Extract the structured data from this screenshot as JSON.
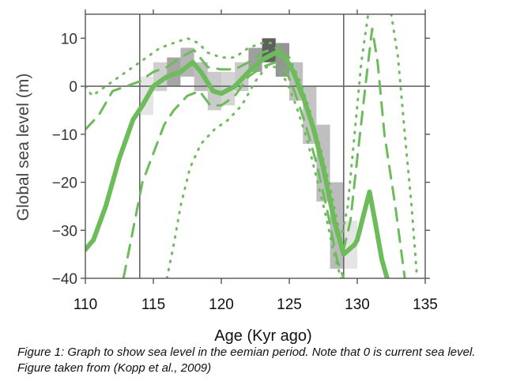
{
  "chart_data": {
    "type": "line",
    "xlabel": "Age (Kyr ago)",
    "ylabel": "Global sea level (m)",
    "xlim": [
      110,
      135
    ],
    "ylim": [
      -40,
      15
    ],
    "x_ticks": [
      110,
      115,
      120,
      125,
      130,
      135
    ],
    "x_tick_labels": [
      "110",
      "115",
      "120",
      "125",
      "130",
      "135"
    ],
    "y_ticks": [
      10,
      0,
      -10,
      -20,
      -30,
      -40
    ],
    "y_tick_labels": [
      "10",
      "0",
      "−10",
      "−20",
      "−30",
      "−40"
    ],
    "reference_lines": {
      "horizontal_y": 0,
      "vertical_x": [
        114,
        129
      ]
    },
    "colors": {
      "series": "#6cbd5a",
      "axes": "#555555",
      "shading": "#2b2b2b"
    },
    "series": [
      {
        "style": "solid",
        "points": [
          [
            110,
            -34
          ],
          [
            110.6,
            -32
          ],
          [
            111.5,
            -25
          ],
          [
            112.5,
            -15
          ],
          [
            113.5,
            -7
          ],
          [
            114.2,
            -4
          ],
          [
            115,
            0
          ],
          [
            116,
            2
          ],
          [
            117,
            3
          ],
          [
            117.9,
            5
          ],
          [
            118.5,
            3
          ],
          [
            119.4,
            -1
          ],
          [
            120,
            -1.5
          ],
          [
            121,
            0
          ],
          [
            122,
            3
          ],
          [
            123,
            5.5
          ],
          [
            124,
            7
          ],
          [
            124.7,
            6
          ],
          [
            125.3,
            3
          ],
          [
            126,
            -2
          ],
          [
            126.8,
            -9
          ],
          [
            127.5,
            -17
          ],
          [
            128.3,
            -28
          ],
          [
            129,
            -35
          ],
          [
            129.8,
            -33
          ],
          [
            130,
            -32
          ],
          [
            130.9,
            -22
          ],
          [
            131.3,
            -28
          ],
          [
            131.8,
            -36
          ],
          [
            132.2,
            -40
          ]
        ]
      },
      {
        "style": "dashed",
        "points": [
          [
            110,
            -9
          ],
          [
            111,
            -6
          ],
          [
            112,
            -1
          ],
          [
            113,
            0
          ],
          [
            114,
            1
          ],
          [
            115,
            3
          ],
          [
            116,
            4
          ],
          [
            117,
            6
          ],
          [
            118,
            7.5
          ],
          [
            119,
            4
          ],
          [
            120,
            3.5
          ],
          [
            121,
            3.5
          ],
          [
            122,
            5
          ],
          [
            123,
            7
          ],
          [
            124,
            8
          ],
          [
            125,
            5
          ],
          [
            125.6,
            0
          ],
          [
            126.3,
            -5
          ],
          [
            127,
            -12
          ],
          [
            127.6,
            -19
          ],
          [
            128.2,
            -26
          ],
          [
            129,
            -34
          ],
          [
            129.5,
            -28
          ],
          [
            130,
            -15
          ],
          [
            130.6,
            0
          ],
          [
            131.1,
            12
          ],
          [
            131.5,
            5
          ],
          [
            132,
            -10
          ],
          [
            132.8,
            -25
          ],
          [
            133.5,
            -40
          ]
        ]
      },
      {
        "style": "dashed",
        "points": [
          [
            112.8,
            -40
          ],
          [
            113.5,
            -30
          ],
          [
            114.2,
            -20
          ],
          [
            115,
            -14
          ],
          [
            115.8,
            -8
          ],
          [
            116.5,
            -5
          ],
          [
            117.5,
            -2
          ],
          [
            118.4,
            -1
          ],
          [
            119.2,
            -4
          ],
          [
            120,
            -4
          ],
          [
            121,
            -2
          ],
          [
            122,
            2
          ],
          [
            123,
            4
          ],
          [
            124,
            5
          ],
          [
            124.8,
            3
          ],
          [
            125.5,
            -2
          ],
          [
            126.2,
            -8
          ],
          [
            127,
            -16
          ],
          [
            127.8,
            -26
          ],
          [
            128.5,
            -36
          ],
          [
            129,
            -40
          ]
        ]
      },
      {
        "style": "dotted",
        "points": [
          [
            110,
            0
          ],
          [
            110.5,
            -2
          ],
          [
            111.5,
            0
          ],
          [
            112.5,
            2
          ],
          [
            113.5,
            4
          ],
          [
            114.5,
            6
          ],
          [
            115.5,
            8
          ],
          [
            116.5,
            9
          ],
          [
            117.5,
            10
          ],
          [
            118.3,
            9
          ],
          [
            119,
            7
          ],
          [
            120,
            6
          ],
          [
            121,
            6
          ],
          [
            122,
            8
          ],
          [
            123,
            9
          ],
          [
            124,
            9
          ],
          [
            125,
            6
          ],
          [
            125.8,
            1
          ],
          [
            126.5,
            -5
          ],
          [
            127.3,
            -13
          ],
          [
            128,
            -21
          ],
          [
            128.8,
            -32
          ],
          [
            129.3,
            -25
          ],
          [
            129.8,
            -10
          ],
          [
            130.3,
            5
          ],
          [
            130.8,
            15
          ]
        ]
      },
      {
        "style": "dotted",
        "points": [
          [
            116,
            -40
          ],
          [
            116.5,
            -33
          ],
          [
            117,
            -25
          ],
          [
            117.7,
            -17
          ],
          [
            118.5,
            -12
          ],
          [
            119.5,
            -9
          ],
          [
            120.5,
            -7
          ],
          [
            121.5,
            -4
          ],
          [
            122.5,
            1
          ],
          [
            123.3,
            4
          ],
          [
            124,
            4
          ],
          [
            124.8,
            1
          ],
          [
            125.5,
            -4
          ],
          [
            126.3,
            -11
          ],
          [
            127,
            -19
          ],
          [
            127.7,
            -27
          ],
          [
            128.3,
            -35
          ],
          [
            128.8,
            -40
          ]
        ]
      },
      {
        "style": "dotted",
        "points": [
          [
            132.5,
            15
          ],
          [
            133,
            6
          ],
          [
            133.5,
            -10
          ],
          [
            134,
            -25
          ],
          [
            134.4,
            -40
          ]
        ]
      }
    ],
    "density_shading": [
      {
        "x": [
          114,
          115
        ],
        "y": [
          -6,
          2
        ],
        "o": 0.12
      },
      {
        "x": [
          115,
          116
        ],
        "y": [
          -1,
          5
        ],
        "o": 0.22
      },
      {
        "x": [
          116,
          117
        ],
        "y": [
          0,
          6
        ],
        "o": 0.42
      },
      {
        "x": [
          117,
          118
        ],
        "y": [
          2,
          8
        ],
        "o": 0.35
      },
      {
        "x": [
          118,
          119
        ],
        "y": [
          -1,
          5
        ],
        "o": 0.3
      },
      {
        "x": [
          119,
          120
        ],
        "y": [
          -5,
          3
        ],
        "o": 0.25
      },
      {
        "x": [
          120,
          121
        ],
        "y": [
          -4,
          3
        ],
        "o": 0.2
      },
      {
        "x": [
          121,
          122
        ],
        "y": [
          -1,
          5
        ],
        "o": 0.25
      },
      {
        "x": [
          122,
          123
        ],
        "y": [
          3,
          8
        ],
        "o": 0.45
      },
      {
        "x": [
          123,
          124
        ],
        "y": [
          5,
          10
        ],
        "o": 0.75
      },
      {
        "x": [
          124,
          125
        ],
        "y": [
          2,
          9
        ],
        "o": 0.5
      },
      {
        "x": [
          125,
          126
        ],
        "y": [
          -3,
          5
        ],
        "o": 0.3
      },
      {
        "x": [
          126,
          127
        ],
        "y": [
          -12,
          0
        ],
        "o": 0.28
      },
      {
        "x": [
          127,
          128
        ],
        "y": [
          -24,
          -8
        ],
        "o": 0.3
      },
      {
        "x": [
          128,
          129
        ],
        "y": [
          -38,
          -20
        ],
        "o": 0.32
      },
      {
        "x": [
          129,
          130
        ],
        "y": [
          -38,
          -28
        ],
        "o": 0.12
      }
    ]
  },
  "caption": "Figure 1: Graph to show sea level in the eemian period. Note that 0 is current sea level. Figure taken from (Kopp et al., 2009)"
}
